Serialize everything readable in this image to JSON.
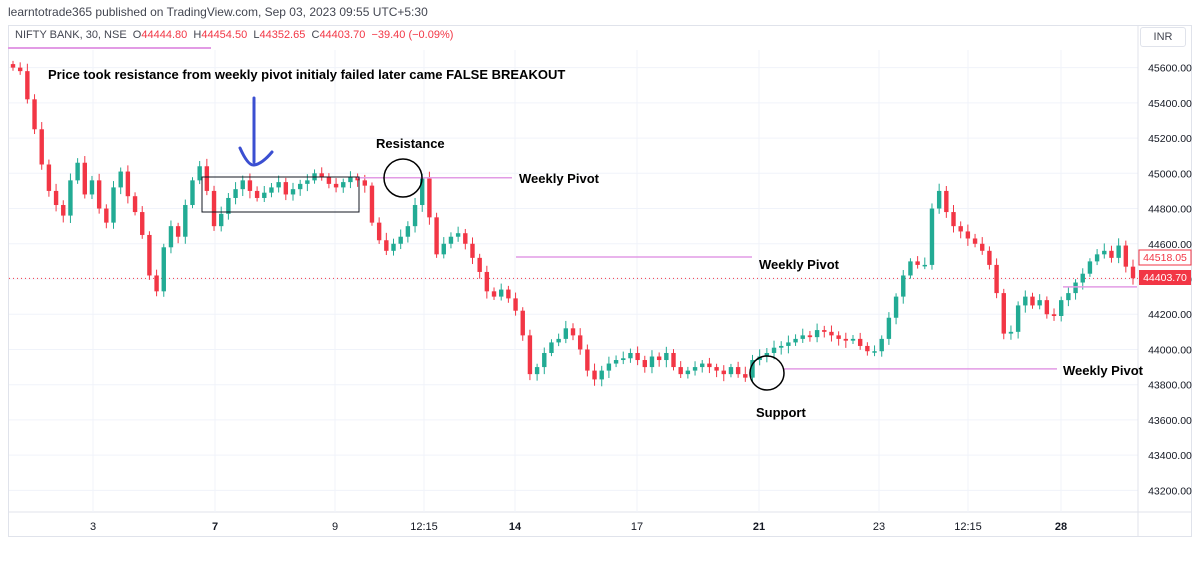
{
  "publisher": "learntotrade365 published on TradingView.com, Sep 03, 2023 09:55 UTC+5:30",
  "legend": {
    "symbol": "NIFTY BANK, 30, NSE",
    "o_label": "O",
    "o": "44444.80",
    "h_label": "H",
    "h": "44454.50",
    "l_label": "L",
    "l": "44352.65",
    "c_label": "C",
    "c": "44403.70",
    "change": "−39.40 (−0.09%)"
  },
  "currency": "INR",
  "colors": {
    "up": "#22ab94",
    "down": "#f23645",
    "pivot": "#e29be5",
    "arrow": "#3b4fd1",
    "last_price_bg": "#f23645",
    "grid": "#f0f3fa"
  },
  "annotations": {
    "headline": "Price took resistance from weekly pivot initialy failed later came FALSE BREAKOUT",
    "resistance": "Resistance",
    "support": "Support",
    "pivot1": "Weekly Pivot",
    "pivot2": "Weekly Pivot",
    "pivot3": "Weekly Pivot"
  },
  "price_labels": {
    "prev_close": "44518.05",
    "last": "44403.70"
  },
  "chart_data": {
    "type": "candlestick",
    "symbol": "NIFTY BANK",
    "interval": "30",
    "ylim": [
      43100,
      45700
    ],
    "y_ticks": [
      "45600.00",
      "45400.00",
      "45200.00",
      "45000.00",
      "44800.00",
      "44600.00",
      "44400.00",
      "44200.00",
      "44000.00",
      "43800.00",
      "43600.00",
      "43400.00",
      "43200.00"
    ],
    "x_ticks": [
      {
        "label": "3",
        "bold": false
      },
      {
        "label": "7",
        "bold": true
      },
      {
        "label": "9",
        "bold": false
      },
      {
        "label": "12:15",
        "bold": false
      },
      {
        "label": "14",
        "bold": true
      },
      {
        "label": "17",
        "bold": false
      },
      {
        "label": "21",
        "bold": true
      },
      {
        "label": "23",
        "bold": false
      },
      {
        "label": "12:15",
        "bold": false
      },
      {
        "label": "28",
        "bold": true
      }
    ],
    "weekly_pivots": [
      44975,
      44525,
      43890,
      44355
    ],
    "close_path": [
      45600,
      45580,
      45420,
      45250,
      45050,
      44900,
      44820,
      44760,
      44960,
      45060,
      44880,
      44960,
      44800,
      44720,
      44920,
      45010,
      44870,
      44780,
      44650,
      44420,
      44330,
      44580,
      44700,
      44640,
      44820,
      44960,
      45040,
      44900,
      44700,
      44770,
      44860,
      44910,
      44960,
      44900,
      44860,
      44890,
      44920,
      44950,
      44880,
      44910,
      44940,
      44960,
      45000,
      44980,
      44940,
      44920,
      44950,
      44980,
      44960,
      44930,
      44720,
      44620,
      44560,
      44600,
      44640,
      44700,
      44820,
      44970,
      44750,
      44540,
      44600,
      44640,
      44660,
      44600,
      44520,
      44440,
      44330,
      44300,
      44340,
      44290,
      44220,
      44080,
      43860,
      43900,
      43980,
      44040,
      44060,
      44120,
      44080,
      44000,
      43880,
      43830,
      43880,
      43920,
      43940,
      43950,
      43980,
      43940,
      43900,
      43960,
      43940,
      43980,
      43900,
      43860,
      43880,
      43900,
      43920,
      43900,
      43880,
      43860,
      43900,
      43860,
      43840,
      43940,
      43960,
      43980,
      44010,
      44020,
      44040,
      44060,
      44080,
      44070,
      44110,
      44100,
      44080,
      44060,
      44050,
      44060,
      44020,
      43990,
      43990,
      44060,
      44180,
      44300,
      44420,
      44500,
      44480,
      44480,
      44800,
      44900,
      44780,
      44700,
      44670,
      44630,
      44600,
      44560,
      44480,
      44320,
      44090,
      44100,
      44250,
      44300,
      44250,
      44280,
      44200,
      44190,
      44280,
      44320,
      44380,
      44430,
      44500,
      44540,
      44560,
      44520,
      44590,
      44470,
      44404
    ]
  }
}
